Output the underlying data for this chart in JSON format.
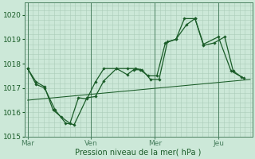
{
  "xlabel": "Pression niveau de la mer( hPa )",
  "bg_color": "#cce8d8",
  "grid_color": "#aaccb8",
  "line_color": "#1a5c28",
  "vline_color": "#4a8060",
  "ylim": [
    1015.0,
    1020.5
  ],
  "yticks": [
    1015,
    1016,
    1017,
    1018,
    1019,
    1020
  ],
  "xtick_labels": [
    "Mar",
    "Ven",
    "Mer",
    "Jeu"
  ],
  "xtick_positions": [
    0,
    3,
    6,
    9
  ],
  "xlim": [
    -0.15,
    10.6
  ],
  "series1_x": [
    0,
    0.4,
    0.8,
    1.2,
    1.6,
    2.0,
    2.4,
    2.8,
    3.2,
    3.6,
    4.2,
    4.7,
    5.0,
    5.3,
    5.7,
    6.1,
    6.5,
    7.0,
    7.5,
    7.9,
    8.3,
    8.8,
    9.3,
    9.7,
    10.1
  ],
  "series1_y": [
    1017.8,
    1017.25,
    1017.05,
    1016.1,
    1015.8,
    1015.55,
    1016.6,
    1016.55,
    1017.25,
    1017.8,
    1017.8,
    1017.55,
    1017.75,
    1017.75,
    1017.5,
    1017.5,
    1018.85,
    1019.0,
    1019.6,
    1019.85,
    1018.75,
    1018.85,
    1019.1,
    1017.7,
    1017.45
  ],
  "series2_x": [
    0,
    0.4,
    0.8,
    1.3,
    1.8,
    2.2,
    2.8,
    3.2,
    3.6,
    4.2,
    4.7,
    5.1,
    5.4,
    5.8,
    6.2,
    6.6,
    7.0,
    7.4,
    7.9,
    8.3,
    9.0,
    9.6,
    10.2
  ],
  "series2_y": [
    1017.8,
    1017.15,
    1017.0,
    1016.1,
    1015.55,
    1015.5,
    1016.6,
    1016.65,
    1017.3,
    1017.8,
    1017.8,
    1017.8,
    1017.75,
    1017.35,
    1017.35,
    1018.9,
    1019.0,
    1019.85,
    1019.85,
    1018.8,
    1019.1,
    1017.7,
    1017.4
  ],
  "series3_x": [
    0,
    10.5
  ],
  "series3_y": [
    1016.5,
    1017.35
  ],
  "vline_positions": [
    0,
    3,
    6,
    9
  ]
}
